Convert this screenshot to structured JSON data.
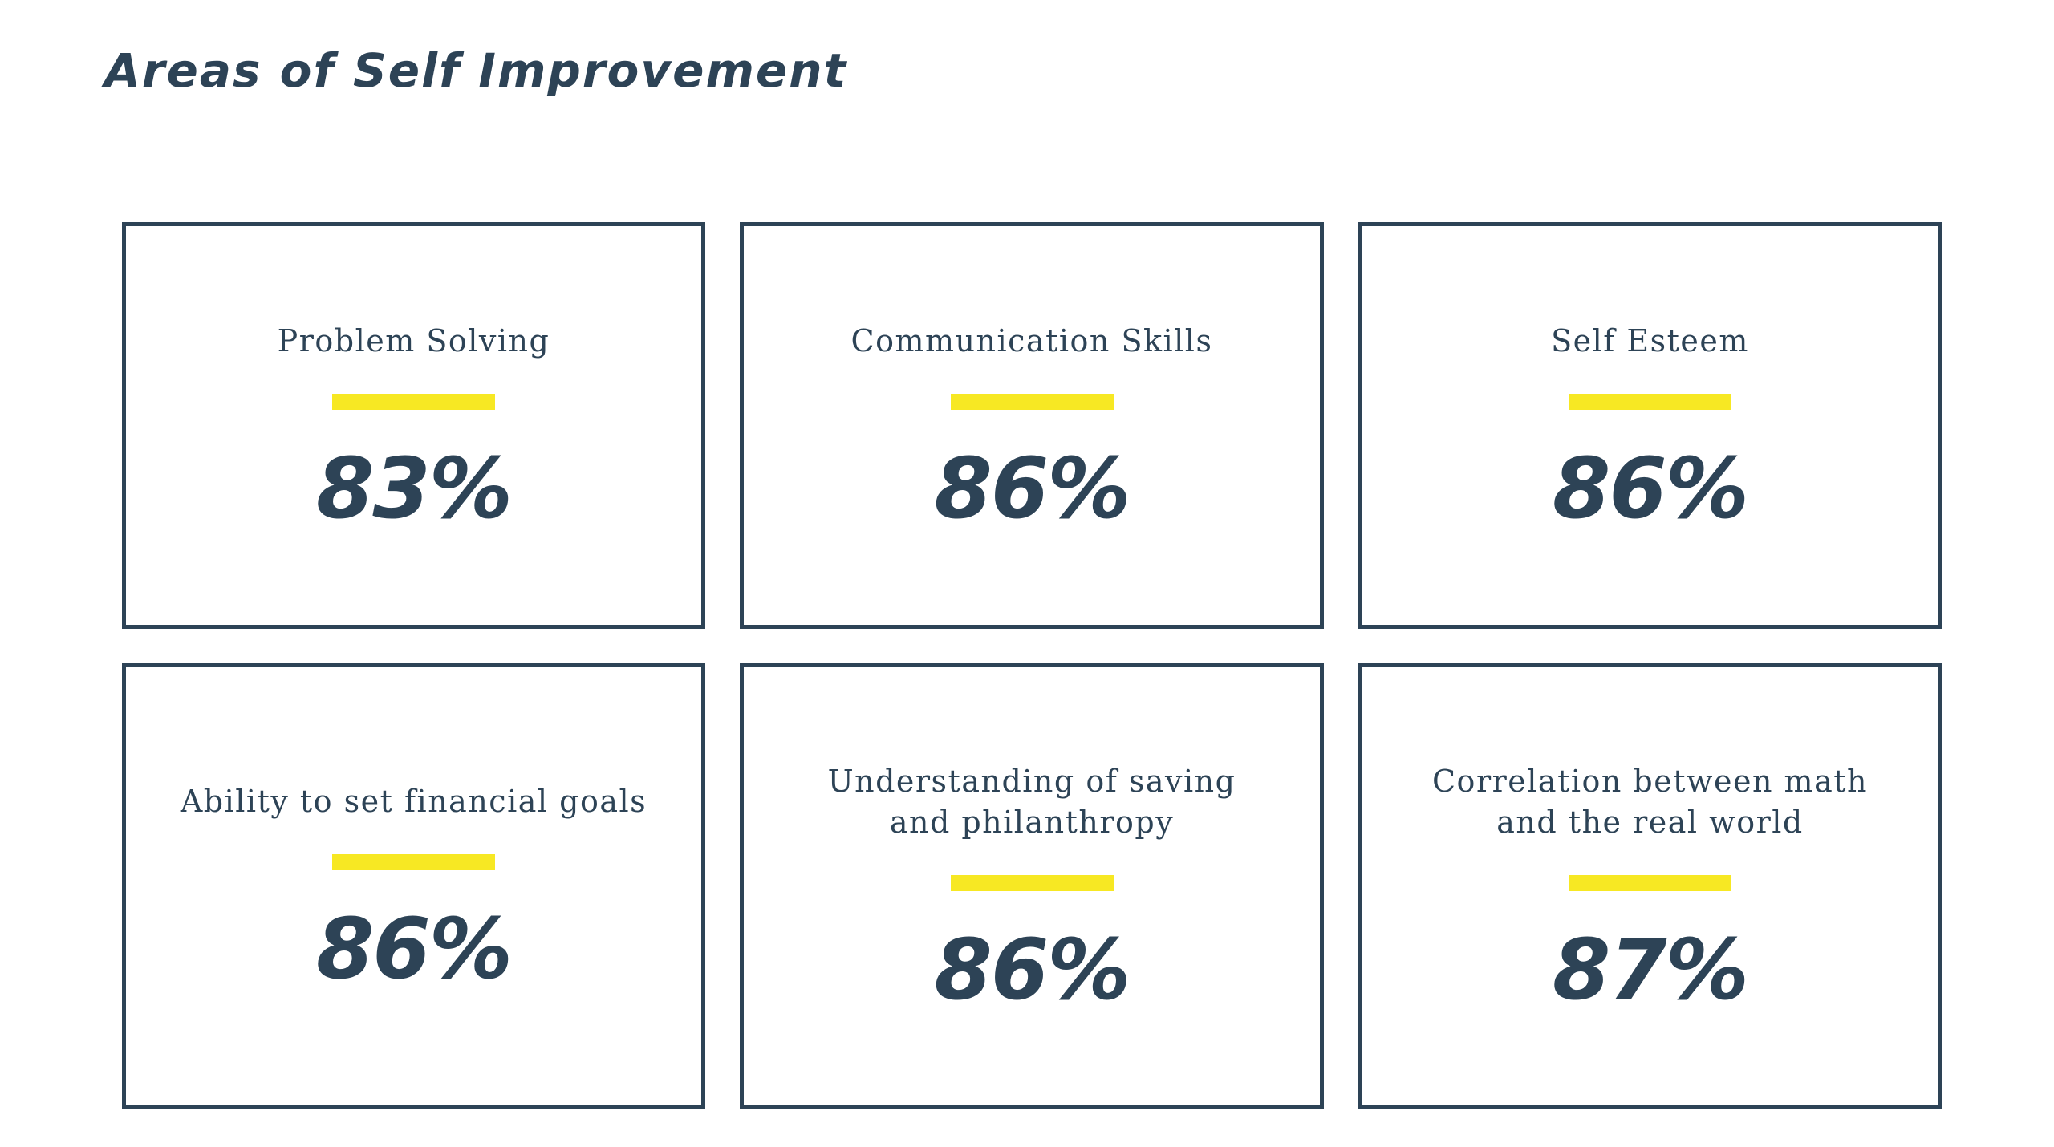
{
  "page": {
    "title": "Areas of Self Improvement"
  },
  "colors": {
    "text": "#2d4356",
    "border": "#2d4356",
    "accent": "#f7e823",
    "background": "#ffffff"
  },
  "cards": [
    {
      "label": "Problem Solving",
      "value": "83%"
    },
    {
      "label": "Communication Skills",
      "value": "86%"
    },
    {
      "label": "Self Esteem",
      "value": "86%"
    },
    {
      "label": "Ability to set financial goals",
      "value": "86%"
    },
    {
      "label": "Understanding of saving and philanthropy",
      "value": "86%"
    },
    {
      "label": "Correlation between math and the real world",
      "value": "87%"
    }
  ]
}
